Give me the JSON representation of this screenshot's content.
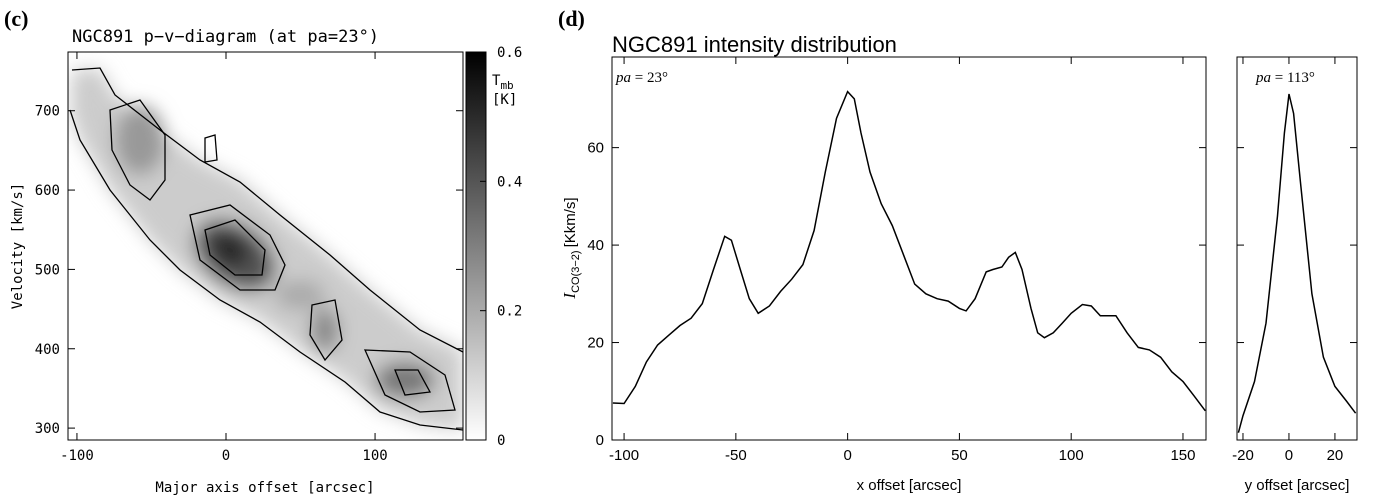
{
  "chart_data": [
    {
      "type": "image",
      "panel_label": "(c)",
      "title": "NGC891   p−v−diagram (at pa=23°)",
      "xlabel": "Major axis offset [arcsec]",
      "ylabel": "Velocity [km/s]",
      "xlim": [
        -106,
        159
      ],
      "xticks": [
        -100,
        0,
        100
      ],
      "ylim": [
        285,
        774
      ],
      "yticks": [
        300,
        400,
        500,
        600,
        700
      ],
      "colorbar": {
        "label": "T",
        "label_sub": "mb",
        "unit": "[K]",
        "lim": [
          0,
          0.6
        ],
        "ticks": [
          0,
          0.2,
          0.4,
          0.6
        ]
      }
    },
    {
      "type": "line",
      "panel_label": "(d)",
      "title": "NGC891  intensity distribution",
      "annotation_italic": "pa",
      "annotation": " = 23°",
      "xlabel": "x offset [arcsec]",
      "ylabel": "I",
      "ylabel_sub": "CO(3−2)",
      "ylabel_unit": "[Kkm/s]",
      "xlim": [
        -105.4,
        160.3
      ],
      "xticks": [
        -100,
        -50,
        0,
        50,
        100,
        150
      ],
      "ylim": [
        0,
        78.6
      ],
      "yticks": [
        0,
        20,
        40,
        60
      ],
      "color": "#000000",
      "x": [
        -105,
        -100,
        -95,
        -90,
        -85,
        -80,
        -75,
        -70,
        -65,
        -60,
        -55,
        -52,
        -48,
        -44,
        -40,
        -35,
        -30,
        -25,
        -20,
        -15,
        -10,
        -5,
        0,
        3,
        6,
        10,
        15,
        20,
        25,
        30,
        35,
        40,
        45,
        50,
        53,
        57,
        62,
        65,
        69,
        72,
        75,
        78,
        82,
        85,
        88,
        92,
        96,
        100,
        105,
        109,
        113,
        117,
        120,
        125,
        130,
        135,
        140,
        145,
        150,
        155,
        160
      ],
      "values": [
        7.6,
        7.5,
        11,
        16,
        19.5,
        21.5,
        23.5,
        25,
        28,
        35,
        41.8,
        41,
        35,
        29,
        26,
        27.5,
        30.5,
        33,
        36,
        43,
        55,
        66,
        71.5,
        70,
        63,
        55,
        48.5,
        44,
        38,
        32,
        30,
        29,
        28.5,
        27,
        26.5,
        29,
        34.5,
        35,
        35.5,
        37.5,
        38.5,
        35,
        27,
        22,
        21,
        22,
        24,
        26,
        27.8,
        27.5,
        25.5,
        25.5,
        25.5,
        22,
        19,
        18.5,
        17,
        14,
        12,
        9,
        6
      ]
    },
    {
      "type": "line",
      "annotation_italic": "pa",
      "annotation": " = 113°",
      "xlabel": "y offset [arcsec]",
      "xlim": [
        -22.6,
        29.6
      ],
      "xticks": [
        -20,
        0,
        20
      ],
      "ylim": [
        0,
        78.6
      ],
      "yticks": [
        0,
        20,
        40,
        60
      ],
      "color": "#000000",
      "x": [
        -22,
        -20,
        -15,
        -10,
        -5,
        -2,
        0,
        2,
        5,
        10,
        15,
        20,
        25,
        29
      ],
      "values": [
        1.5,
        5,
        12,
        24,
        46,
        63,
        71,
        67,
        53,
        30,
        17,
        11,
        8,
        5.5
      ]
    }
  ]
}
